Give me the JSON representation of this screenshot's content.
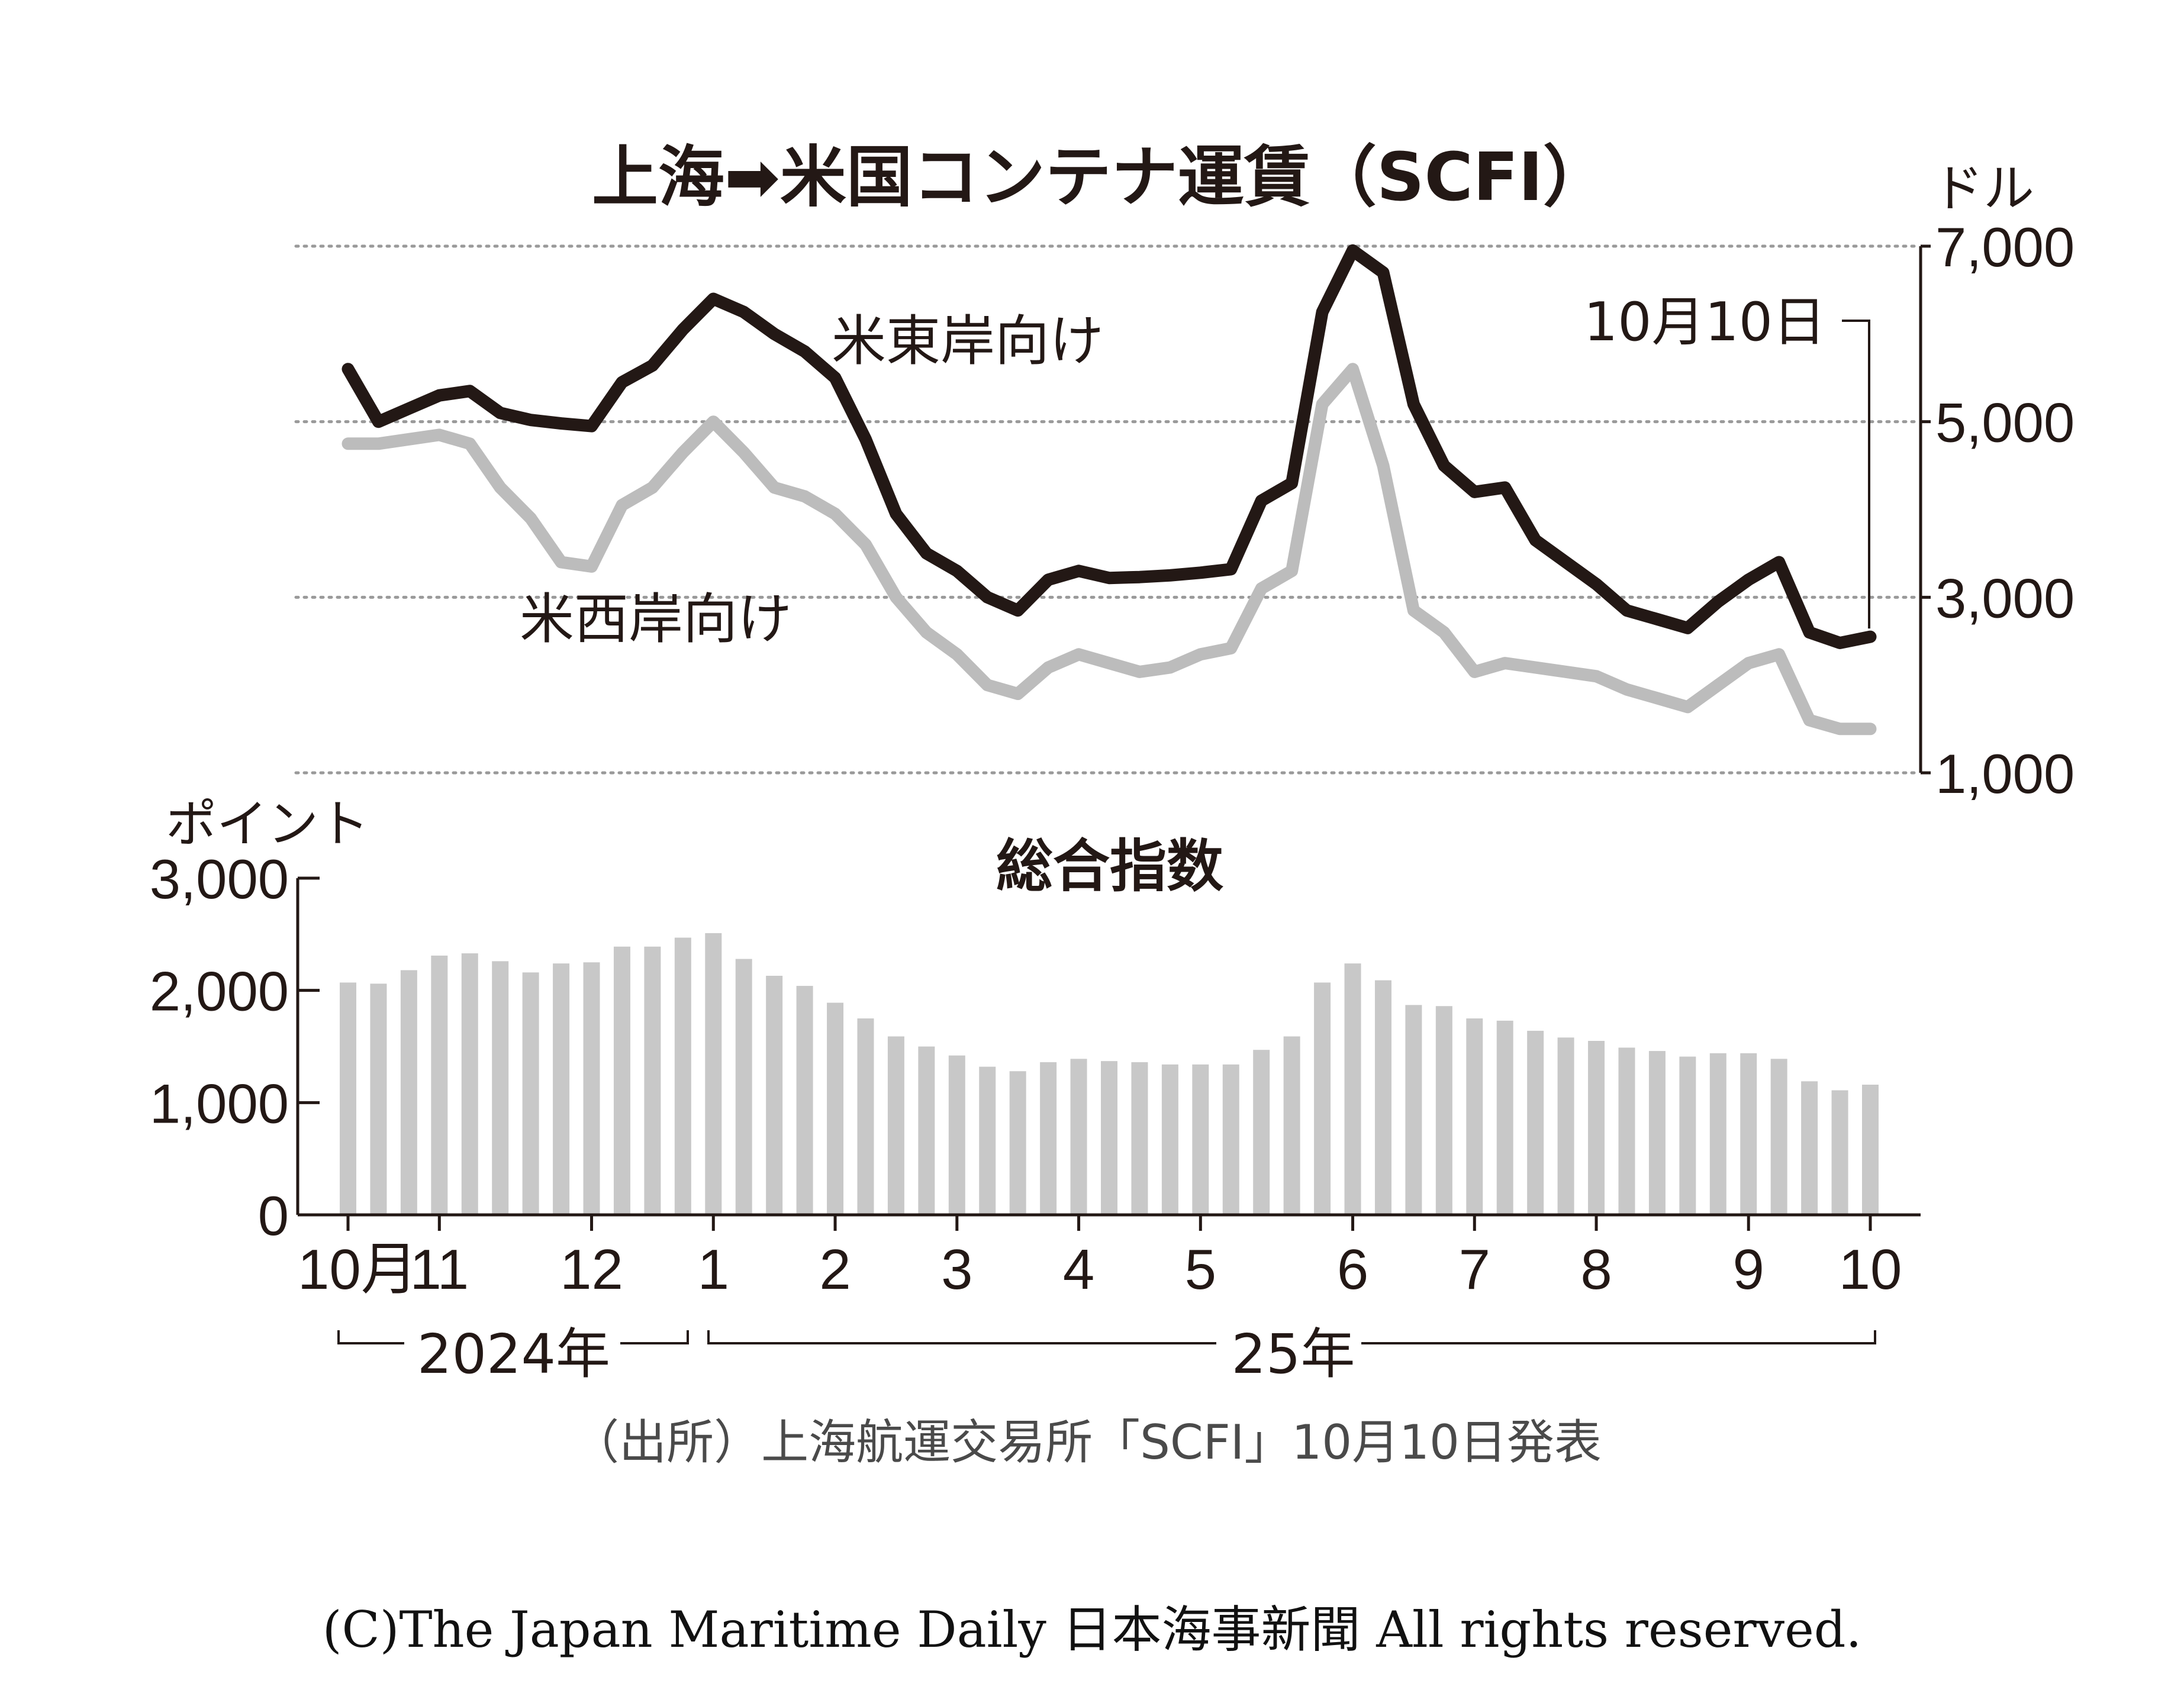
{
  "chart_data": [
    {
      "type": "line",
      "title": "上海➡米国コンテナ運賃（SCFI）",
      "unit": "ドル",
      "ylim": [
        1000,
        7000
      ],
      "yticks": [
        1000,
        3000,
        5000,
        7000
      ],
      "ytick_labels": [
        "1,000",
        "3,000",
        "5,000",
        "7,000"
      ],
      "grid": true,
      "annotation": "10月10日",
      "series": [
        {
          "name": "米東岸向け",
          "color": "#231815",
          "values": [
            5600,
            5000,
            5150,
            5300,
            5350,
            5100,
            5020,
            4980,
            4950,
            5450,
            5640,
            6050,
            6400,
            6250,
            6000,
            5800,
            5500,
            4800,
            3950,
            3500,
            3300,
            3000,
            2850,
            3200,
            3300,
            3220,
            3230,
            3250,
            3280,
            3320,
            4100,
            4300,
            6250,
            6950,
            6700,
            5200,
            4500,
            4200,
            4250,
            3650,
            3400,
            3150,
            2850,
            2750,
            2650,
            2950,
            3200,
            3400,
            2600,
            2480,
            2550
          ]
        },
        {
          "name": "米西岸向け",
          "color": "#bcbcbc",
          "values": [
            4750,
            4750,
            4800,
            4850,
            4750,
            4250,
            3900,
            3400,
            3350,
            4050,
            4250,
            4650,
            5000,
            4650,
            4250,
            4150,
            3950,
            3600,
            3000,
            2600,
            2350,
            2000,
            1900,
            2200,
            2350,
            2250,
            2150,
            2200,
            2350,
            2420,
            3100,
            3300,
            5200,
            5600,
            4500,
            2850,
            2600,
            2150,
            2250,
            2200,
            2150,
            2100,
            1950,
            1850,
            1750,
            2000,
            2250,
            2350,
            1600,
            1500,
            1500
          ]
        }
      ]
    },
    {
      "type": "bar",
      "title": "総合指数",
      "unit": "ポイント",
      "ylim": [
        0,
        3000
      ],
      "yticks": [
        0,
        1000,
        2000,
        3000
      ],
      "ytick_labels": [
        "0",
        "1,000",
        "2,000",
        "3,000"
      ],
      "color": "#c8c8c8",
      "values": [
        2070,
        2060,
        2180,
        2310,
        2330,
        2260,
        2160,
        2240,
        2250,
        2390,
        2390,
        2470,
        2510,
        2280,
        2130,
        2040,
        1890,
        1750,
        1590,
        1500,
        1420,
        1320,
        1280,
        1360,
        1390,
        1370,
        1360,
        1340,
        1340,
        1340,
        1470,
        1590,
        2070,
        2240,
        2090,
        1870,
        1860,
        1750,
        1730,
        1640,
        1580,
        1550,
        1490,
        1460,
        1410,
        1440,
        1440,
        1390,
        1190,
        1110,
        1160
      ]
    }
  ],
  "x_axis": {
    "tick_labels": [
      "10月",
      "11",
      "12",
      "1",
      "2",
      "3",
      "4",
      "5",
      "6",
      "7",
      "8",
      "9",
      "10"
    ],
    "tick_weeks": [
      0,
      3,
      8,
      12,
      16,
      20,
      24,
      28,
      33,
      37,
      41,
      46,
      50
    ],
    "year_labels": [
      "2024年",
      "25年"
    ]
  },
  "source": "（出所）上海航運交易所「SCFI」10月10日発表",
  "copyright": "(C)The Japan Maritime Daily 日本海事新聞 All rights reserved."
}
